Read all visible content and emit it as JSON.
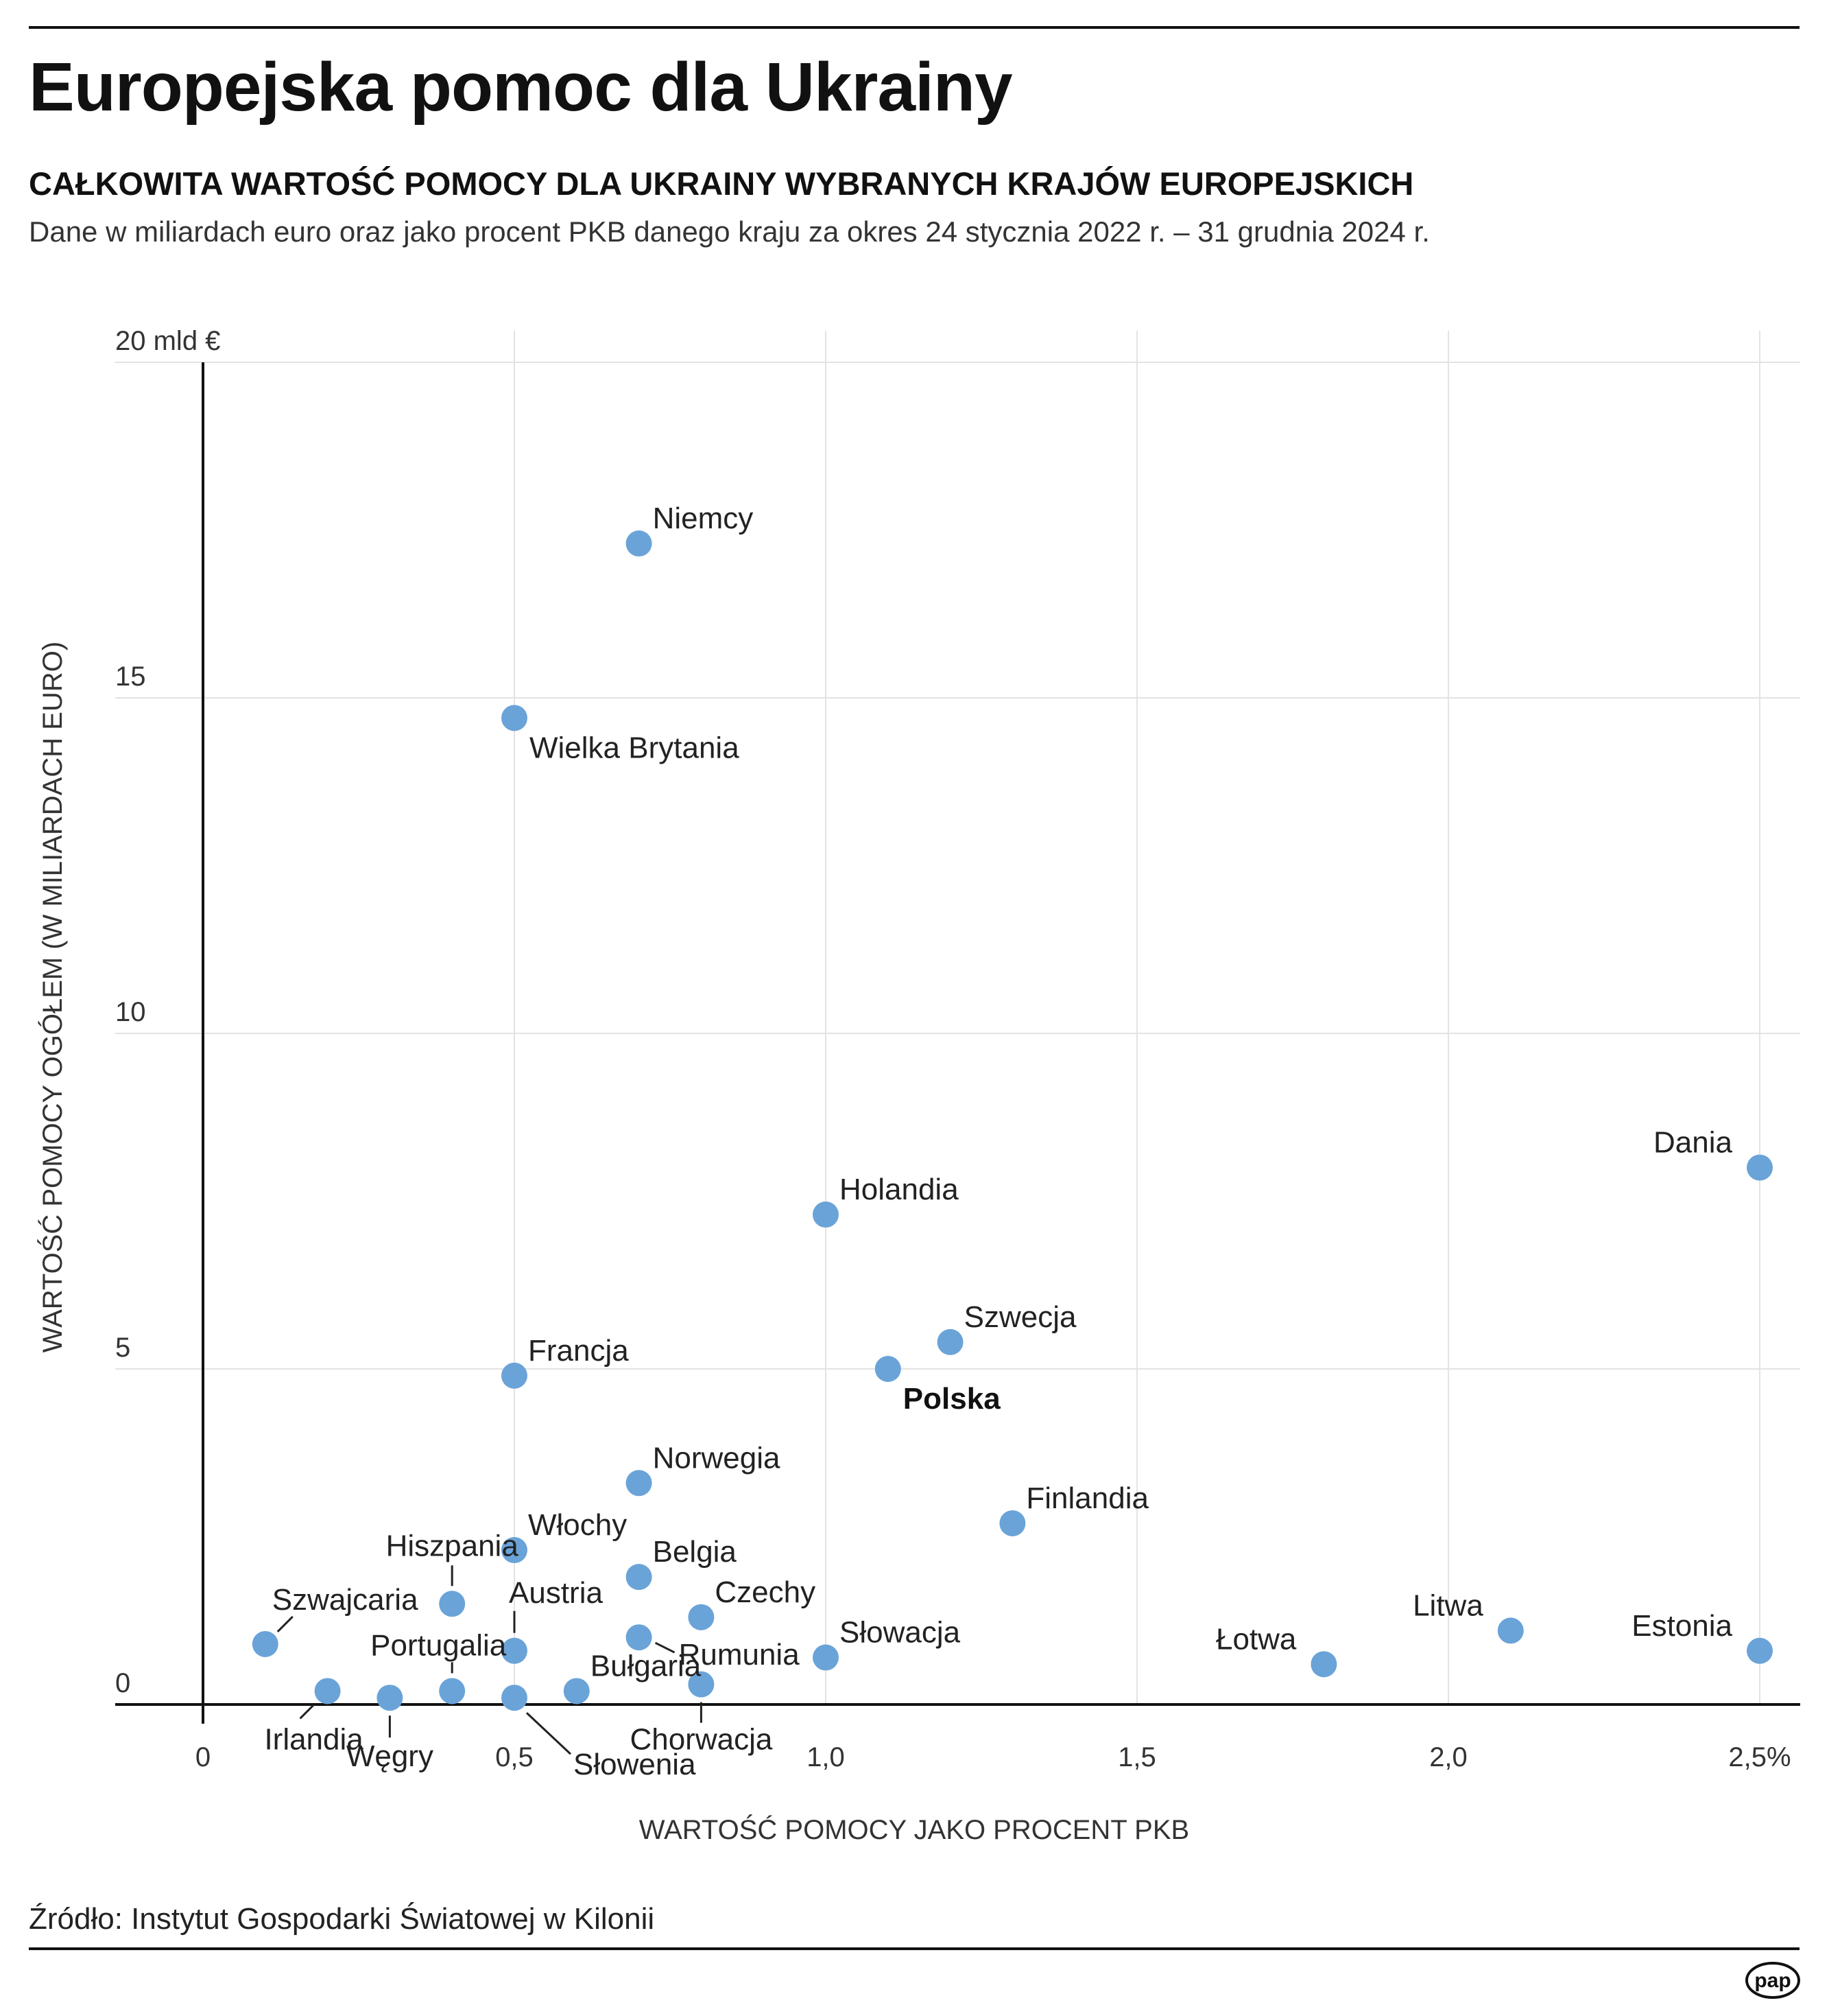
{
  "header": {
    "title": "Europejska pomoc dla Ukrainy",
    "subtitle": "CAŁKOWITA WARTOŚĆ POMOCY DLA UKRAINY WYBRANYCH KRAJÓW EUROPEJSKICH",
    "description": "Dane w miliardach euro oraz jako procent PKB danego kraju za okres 24 stycznia 2022 r. – 31 grudnia 2024 r."
  },
  "footer": {
    "source": "Źródło: Instytut Gospodarki Światowej w Kilonii",
    "logo_text": "pap"
  },
  "colors": {
    "dot": "#6aa3d8",
    "grid": "#e3e3e3",
    "axis": "#111111"
  },
  "chart_data": {
    "type": "scatter",
    "title": "CAŁKOWITA WARTOŚĆ POMOCY DLA UKRAINY WYBRANYCH KRAJÓW EUROPEJSKICH",
    "xlabel": "WARTOŚĆ POMOCY JAKO PROCENT PKB",
    "ylabel": "WARTOŚĆ POMOCY OGÓŁEM (W MILIARDACH EURO)",
    "xlim": [
      0,
      2.5
    ],
    "ylim": [
      0,
      20
    ],
    "x_ticks": [
      0,
      0.5,
      1.0,
      1.5,
      2.0,
      2.5
    ],
    "x_tick_labels": [
      "0",
      "0,5",
      "1,0",
      "1,5",
      "2,0",
      "2,5%"
    ],
    "y_ticks": [
      0,
      5,
      10,
      15,
      20
    ],
    "y_tick_labels": [
      "0",
      "5",
      "10",
      "15",
      "20 mld €"
    ],
    "grid": true,
    "points": [
      {
        "name": "Niemcy",
        "x": 0.7,
        "y": 17.3,
        "label_pos": "ne"
      },
      {
        "name": "Wielka Brytania",
        "x": 0.5,
        "y": 14.7,
        "label_pos": "se"
      },
      {
        "name": "Dania",
        "x": 2.5,
        "y": 8.0,
        "label_pos": "nw"
      },
      {
        "name": "Holandia",
        "x": 1.0,
        "y": 7.3,
        "label_pos": "ne"
      },
      {
        "name": "Szwecja",
        "x": 1.2,
        "y": 5.4,
        "label_pos": "ne"
      },
      {
        "name": "Polska",
        "x": 1.1,
        "y": 5.0,
        "label_pos": "se",
        "bold": true
      },
      {
        "name": "Francja",
        "x": 0.5,
        "y": 4.9,
        "label_pos": "ne"
      },
      {
        "name": "Norwegia",
        "x": 0.7,
        "y": 3.3,
        "label_pos": "ne"
      },
      {
        "name": "Finlandia",
        "x": 1.3,
        "y": 2.7,
        "label_pos": "ne"
      },
      {
        "name": "Włochy",
        "x": 0.5,
        "y": 2.3,
        "label_pos": "ne"
      },
      {
        "name": "Belgia",
        "x": 0.7,
        "y": 1.9,
        "label_pos": "ne"
      },
      {
        "name": "Hiszpania",
        "x": 0.4,
        "y": 1.5,
        "label_pos": "leader-up"
      },
      {
        "name": "Czechy",
        "x": 0.8,
        "y": 1.3,
        "label_pos": "ne"
      },
      {
        "name": "Austria",
        "x": 0.5,
        "y": 0.8,
        "label_pos": "leader-up-right"
      },
      {
        "name": "Rumunia",
        "x": 0.7,
        "y": 1.0,
        "label_pos": "leader-right"
      },
      {
        "name": "Litwa",
        "x": 2.1,
        "y": 1.1,
        "label_pos": "nw"
      },
      {
        "name": "Szwajcaria",
        "x": 0.1,
        "y": 0.9,
        "label_pos": "leader-up-right"
      },
      {
        "name": "Estonia",
        "x": 2.5,
        "y": 0.8,
        "label_pos": "nw"
      },
      {
        "name": "Słowacja",
        "x": 1.0,
        "y": 0.7,
        "label_pos": "ne"
      },
      {
        "name": "Łotwa",
        "x": 1.8,
        "y": 0.6,
        "label_pos": "nw"
      },
      {
        "name": "Chorwacja",
        "x": 0.8,
        "y": 0.3,
        "label_pos": "leader-down"
      },
      {
        "name": "Portugalia",
        "x": 0.4,
        "y": 0.2,
        "label_pos": "leader-up"
      },
      {
        "name": "Bułgaria",
        "x": 0.6,
        "y": 0.2,
        "label_pos": "ne"
      },
      {
        "name": "Irlandia",
        "x": 0.2,
        "y": 0.2,
        "label_pos": "leader-down-left"
      },
      {
        "name": "Węgry",
        "x": 0.3,
        "y": 0.1,
        "label_pos": "leader-down"
      },
      {
        "name": "Słowenia",
        "x": 0.5,
        "y": 0.1,
        "label_pos": "leader-down-right"
      }
    ]
  }
}
